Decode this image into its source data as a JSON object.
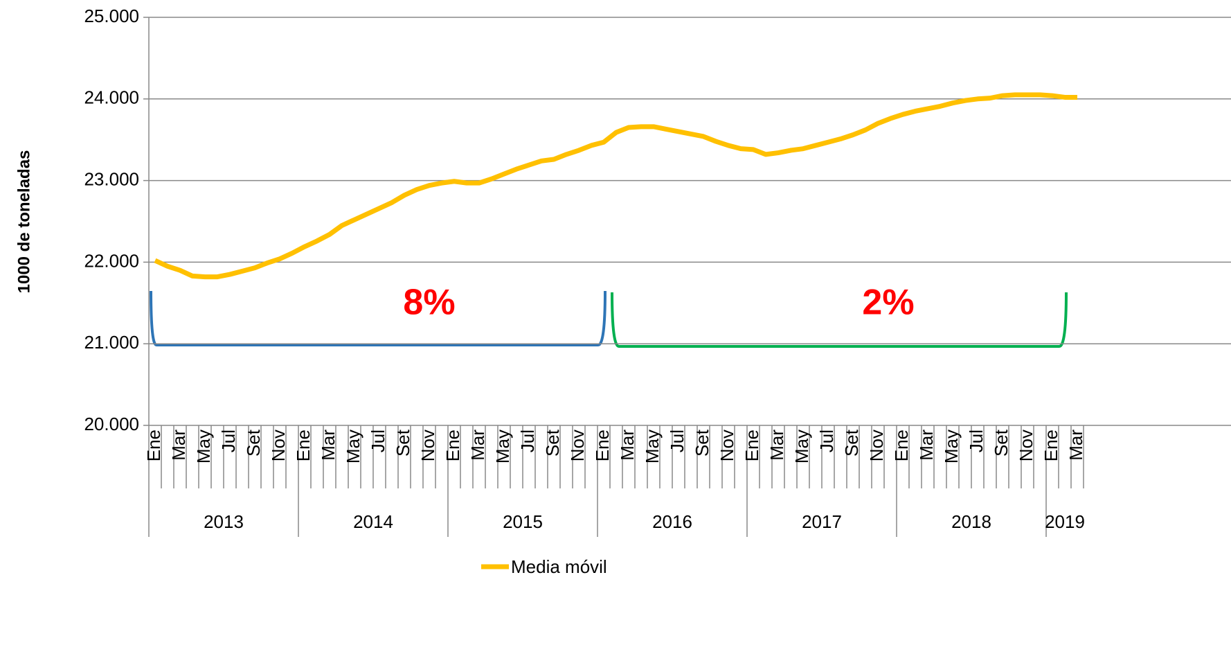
{
  "chart_data": {
    "type": "line",
    "y_label": "1000 de toneladas",
    "categories": [
      "Ene",
      null,
      "Mar",
      null,
      "May",
      null,
      "Jul",
      null,
      "Set",
      null,
      "Nov",
      null,
      "Ene",
      null,
      "Mar",
      null,
      "May",
      null,
      "Jul",
      null,
      "Set",
      null,
      "Nov",
      null,
      "Ene",
      null,
      "Mar",
      null,
      "May",
      null,
      "Jul",
      null,
      "Set",
      null,
      "Nov",
      null,
      "Ene",
      null,
      "Mar",
      null,
      "May",
      null,
      "Jul",
      null,
      "Set",
      null,
      "Nov",
      null,
      "Ene",
      null,
      "Mar",
      null,
      "May",
      null,
      "Jul",
      null,
      "Set",
      null,
      "Nov",
      null,
      "Ene",
      null,
      "Mar",
      null,
      "May",
      null,
      "Jul",
      null,
      "Set",
      null,
      "Nov",
      null,
      "Ene",
      null,
      "Mar"
    ],
    "years": [
      "2013",
      "2014",
      "2015",
      "2016",
      "2017",
      "2018",
      "2019"
    ],
    "series": [
      {
        "name": "Media móvil",
        "color": "#ffc000",
        "values": [
          22020,
          21950,
          21900,
          21830,
          21820,
          21820,
          21850,
          21890,
          21930,
          21990,
          22040,
          22110,
          22190,
          22260,
          22340,
          22450,
          22520,
          22590,
          22660,
          22730,
          22820,
          22890,
          22940,
          22970,
          22990,
          22970,
          22970,
          23020,
          23080,
          23140,
          23190,
          23240,
          23260,
          23320,
          23370,
          23430,
          23470,
          23590,
          23650,
          23660,
          23660,
          23630,
          23600,
          23570,
          23540,
          23480,
          23430,
          23390,
          23380,
          23320,
          23340,
          23370,
          23390,
          23430,
          23470,
          23510,
          23560,
          23620,
          23700,
          23760,
          23810,
          23850,
          23880,
          23910,
          23950,
          23980,
          24000,
          24010,
          24040,
          24050,
          24050,
          24050,
          24040,
          24020,
          24020
        ]
      }
    ],
    "ylim": [
      20000,
      25000
    ],
    "yticks": [
      {
        "value": 20000,
        "label": "20.000"
      },
      {
        "value": 21000,
        "label": "21.000"
      },
      {
        "value": 22000,
        "label": "22.000"
      },
      {
        "value": 23000,
        "label": "23.000"
      },
      {
        "value": 24000,
        "label": "24.000"
      },
      {
        "value": 25000,
        "label": "25.000"
      }
    ],
    "grid": true,
    "annotations": [
      "8%",
      "2%"
    ],
    "legend": "bottom"
  }
}
